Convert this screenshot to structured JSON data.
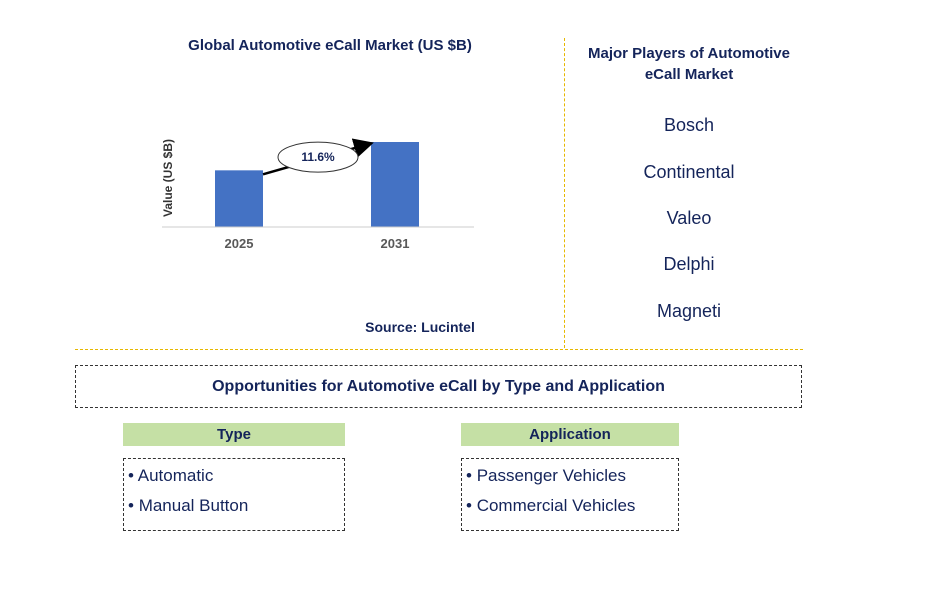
{
  "chart_data": {
    "type": "bar",
    "title": "Global Automotive eCall Market (US $B)",
    "ylabel": "Value (US $B)",
    "categories": [
      "2025",
      "2031"
    ],
    "values": [
      1.0,
      1.5
    ],
    "annotation": "11.6%",
    "source": "Source: Lucintel",
    "bar_color": "#4472c4"
  },
  "players": {
    "title": "Major Players of Automotive eCall Market",
    "names": [
      "Bosch",
      "Continental",
      "Valeo",
      "Delphi",
      "Magneti"
    ]
  },
  "opportunities": {
    "title": "Opportunities for Automotive eCall by Type and Application",
    "type": {
      "header": "Type",
      "items": [
        "Automatic",
        "Manual Button"
      ]
    },
    "application": {
      "header": "Application",
      "items": [
        "Passenger Vehicles",
        "Commercial Vehicles"
      ]
    }
  }
}
